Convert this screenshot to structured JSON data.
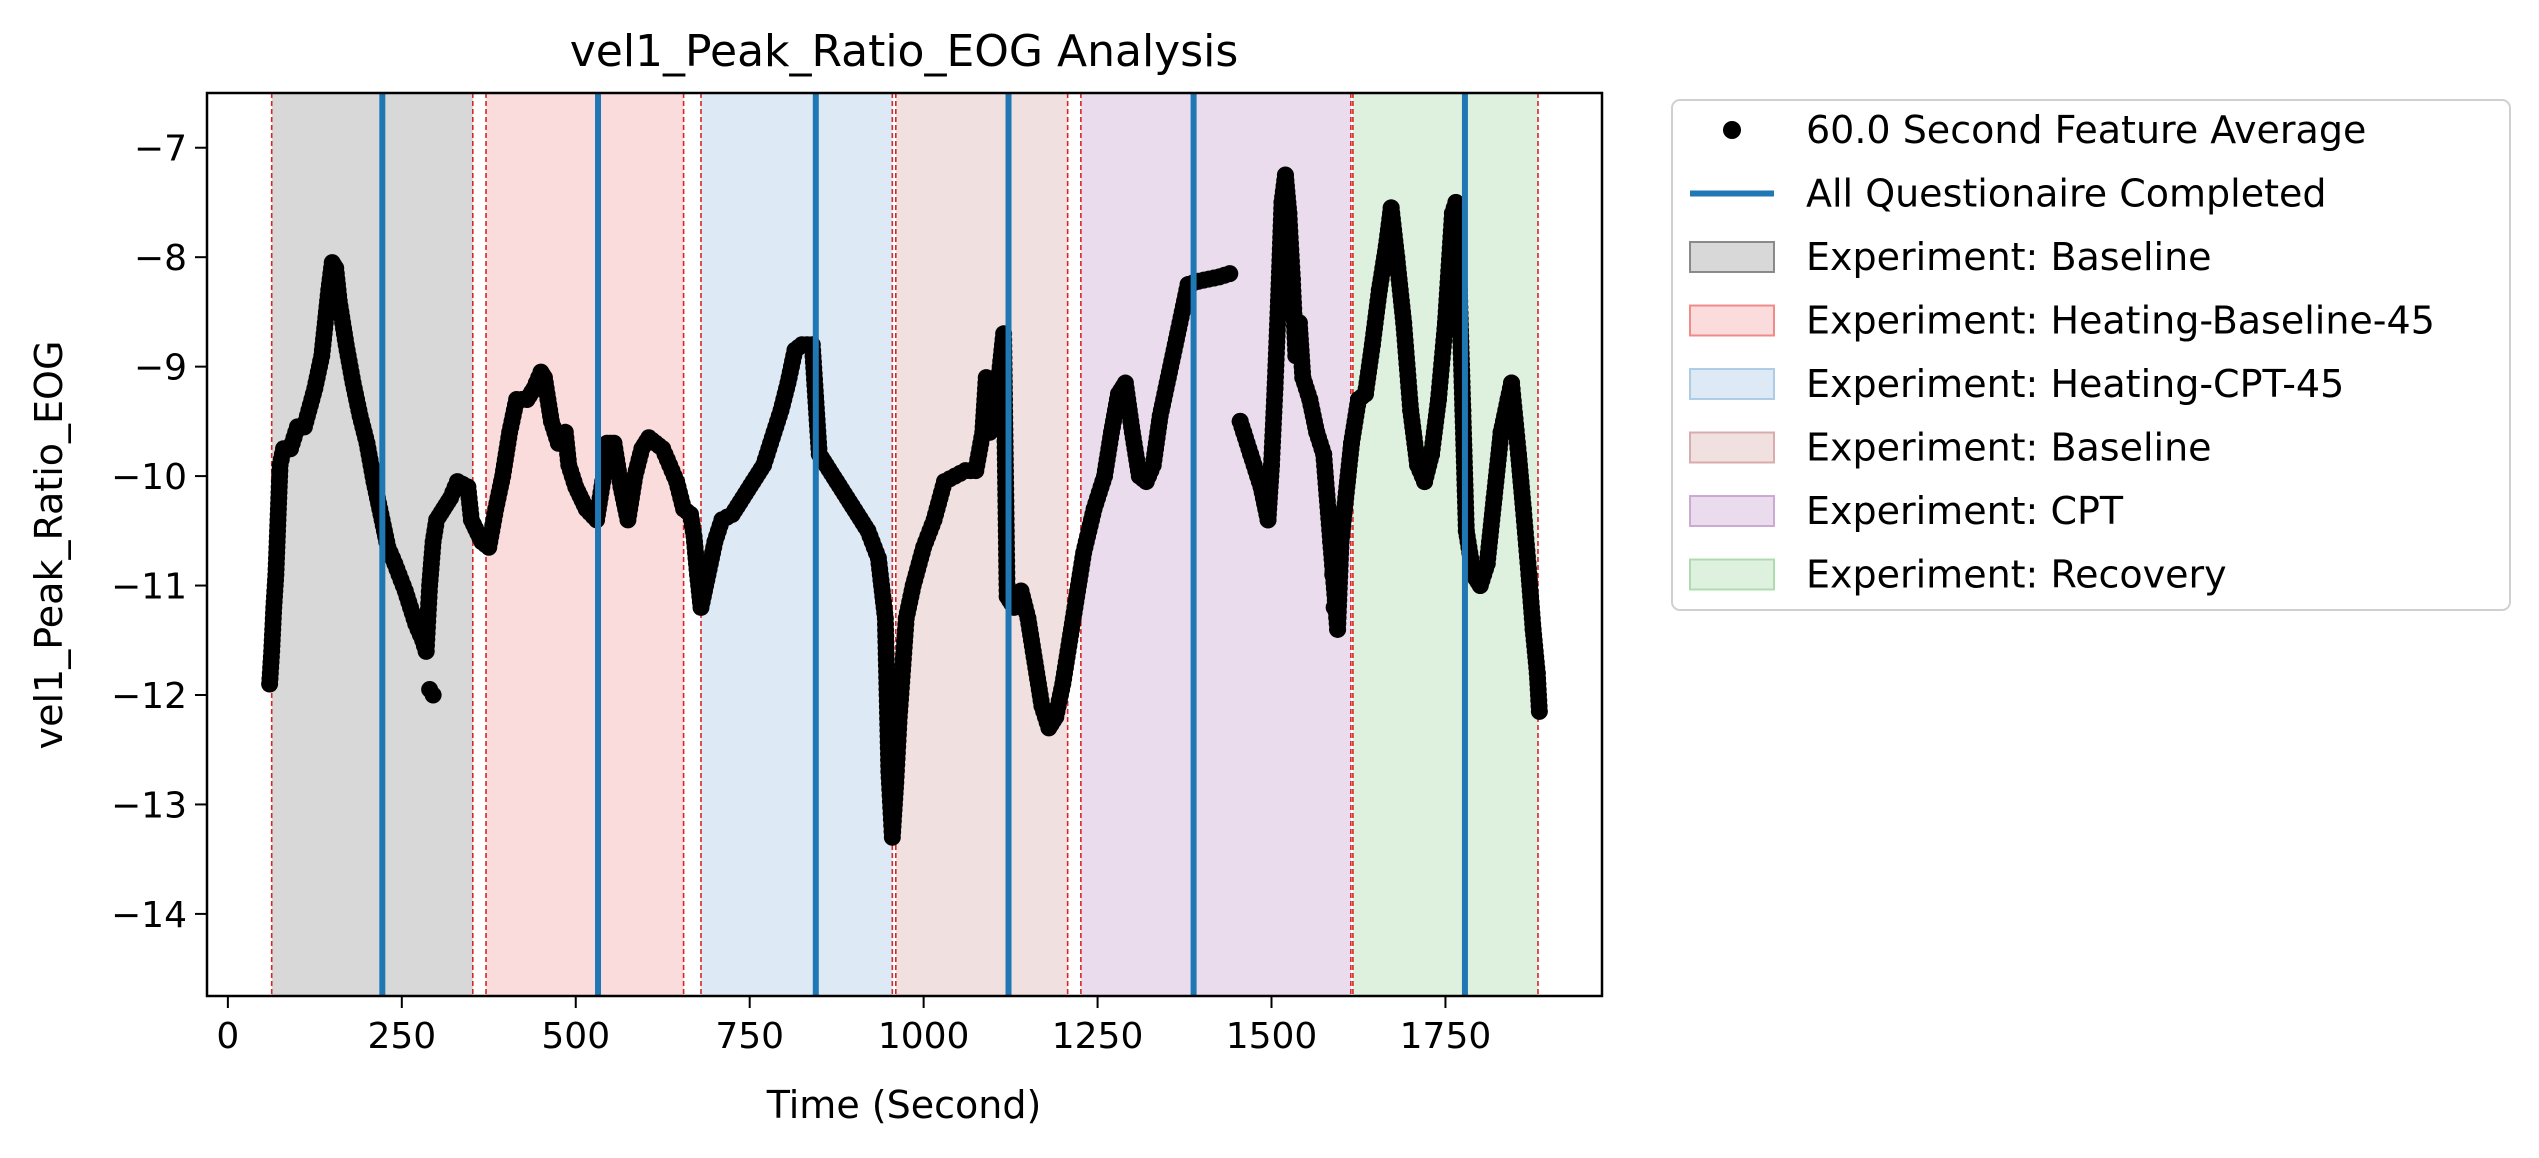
{
  "chart_data": {
    "type": "scatter",
    "title": "vel1_Peak_Ratio_EOG Analysis",
    "xlabel": "Time (Second)",
    "ylabel": "vel1_Peak_Ratio_EOG",
    "xlim": [
      -30,
      1975
    ],
    "ylim": [
      -14.75,
      -6.5
    ],
    "xticks": [
      0,
      250,
      500,
      750,
      1000,
      1250,
      1500,
      1750
    ],
    "xtick_labels": [
      "0",
      "250",
      "500",
      "750",
      "1000",
      "1250",
      "1500",
      "1750"
    ],
    "yticks": [
      -14,
      -13,
      -12,
      -11,
      -10,
      -9,
      -8,
      -7
    ],
    "ytick_labels": [
      "−14",
      "−13",
      "−12",
      "−11",
      "−10",
      "−9",
      "−8",
      "−7"
    ],
    "grid": false,
    "legend_position": "outside-right-top",
    "series": [
      {
        "name": "60.0 Second Feature Average",
        "color": "#000000",
        "marker": "circle",
        "path": [
          [
            60,
            -11.9
          ],
          [
            63,
            -11.6
          ],
          [
            66,
            -11.2
          ],
          [
            69,
            -10.9
          ],
          [
            72,
            -10.4
          ],
          [
            75,
            -9.9
          ],
          [
            80,
            -9.75
          ],
          [
            90,
            -9.75
          ],
          [
            100,
            -9.55
          ],
          [
            110,
            -9.55
          ],
          [
            125,
            -9.2
          ],
          [
            135,
            -8.9
          ],
          [
            145,
            -8.3
          ],
          [
            150,
            -8.05
          ],
          [
            155,
            -8.1
          ],
          [
            160,
            -8.4
          ],
          [
            170,
            -8.8
          ],
          [
            180,
            -9.15
          ],
          [
            190,
            -9.45
          ],
          [
            200,
            -9.7
          ],
          [
            210,
            -10.05
          ],
          [
            220,
            -10.35
          ],
          [
            230,
            -10.65
          ],
          [
            240,
            -10.8
          ],
          [
            255,
            -11.05
          ],
          [
            270,
            -11.35
          ],
          [
            280,
            -11.5
          ],
          [
            285,
            -11.6
          ],
          [
            290,
            -11.0
          ],
          [
            295,
            -10.6
          ],
          [
            300,
            -10.4
          ],
          [
            310,
            -10.3
          ],
          [
            320,
            -10.2
          ],
          [
            330,
            -10.05
          ],
          [
            345,
            -10.1
          ],
          [
            350,
            -10.4
          ],
          [
            365,
            -10.6
          ],
          [
            375,
            -10.65
          ],
          [
            385,
            -10.3
          ],
          [
            395,
            -10.0
          ],
          [
            405,
            -9.6
          ],
          [
            415,
            -9.3
          ],
          [
            430,
            -9.3
          ],
          [
            440,
            -9.2
          ],
          [
            450,
            -9.05
          ],
          [
            455,
            -9.1
          ],
          [
            465,
            -9.5
          ],
          [
            475,
            -9.7
          ],
          [
            485,
            -9.6
          ],
          [
            490,
            -9.9
          ],
          [
            500,
            -10.1
          ],
          [
            515,
            -10.3
          ],
          [
            530,
            -10.4
          ],
          [
            540,
            -10.0
          ],
          [
            545,
            -9.7
          ],
          [
            555,
            -9.7
          ],
          [
            565,
            -10.1
          ],
          [
            575,
            -10.4
          ],
          [
            585,
            -10.0
          ],
          [
            595,
            -9.75
          ],
          [
            605,
            -9.65
          ],
          [
            615,
            -9.7
          ],
          [
            625,
            -9.75
          ],
          [
            635,
            -9.9
          ],
          [
            645,
            -10.05
          ],
          [
            655,
            -10.3
          ],
          [
            665,
            -10.35
          ],
          [
            670,
            -10.55
          ],
          [
            675,
            -10.9
          ],
          [
            680,
            -11.2
          ],
          [
            690,
            -10.9
          ],
          [
            700,
            -10.6
          ],
          [
            710,
            -10.4
          ],
          [
            725,
            -10.35
          ],
          [
            740,
            -10.2
          ],
          [
            755,
            -10.05
          ],
          [
            770,
            -9.9
          ],
          [
            785,
            -9.6
          ],
          [
            795,
            -9.4
          ],
          [
            805,
            -9.15
          ],
          [
            815,
            -8.85
          ],
          [
            825,
            -8.8
          ],
          [
            840,
            -8.8
          ],
          [
            850,
            -9.8
          ],
          [
            860,
            -9.9
          ],
          [
            875,
            -10.05
          ],
          [
            890,
            -10.2
          ],
          [
            905,
            -10.35
          ],
          [
            920,
            -10.5
          ],
          [
            935,
            -10.75
          ],
          [
            945,
            -11.3
          ],
          [
            950,
            -12.7
          ],
          [
            955,
            -13.3
          ],
          [
            960,
            -12.8
          ],
          [
            965,
            -12.2
          ],
          [
            975,
            -11.3
          ],
          [
            985,
            -11.0
          ],
          [
            1000,
            -10.65
          ],
          [
            1015,
            -10.4
          ],
          [
            1030,
            -10.05
          ],
          [
            1045,
            -10.0
          ],
          [
            1060,
            -9.95
          ],
          [
            1075,
            -9.95
          ],
          [
            1085,
            -9.6
          ],
          [
            1090,
            -9.1
          ],
          [
            1095,
            -9.6
          ],
          [
            1100,
            -9.55
          ],
          [
            1110,
            -9.0
          ],
          [
            1115,
            -8.7
          ],
          [
            1120,
            -11.1
          ],
          [
            1130,
            -11.2
          ],
          [
            1140,
            -11.05
          ],
          [
            1150,
            -11.3
          ],
          [
            1160,
            -11.7
          ],
          [
            1170,
            -12.1
          ],
          [
            1180,
            -12.3
          ],
          [
            1190,
            -12.2
          ],
          [
            1200,
            -11.9
          ],
          [
            1215,
            -11.3
          ],
          [
            1230,
            -10.7
          ],
          [
            1245,
            -10.3
          ],
          [
            1260,
            -10.0
          ],
          [
            1270,
            -9.6
          ],
          [
            1280,
            -9.25
          ],
          [
            1290,
            -9.15
          ],
          [
            1300,
            -9.6
          ],
          [
            1310,
            -10.0
          ],
          [
            1320,
            -10.05
          ],
          [
            1330,
            -9.9
          ],
          [
            1340,
            -9.45
          ],
          [
            1355,
            -9.0
          ],
          [
            1365,
            -8.7
          ],
          [
            1380,
            -8.25
          ],
          [
            1395,
            -8.22
          ],
          [
            1410,
            -8.2
          ],
          [
            1425,
            -8.18
          ],
          [
            1440,
            -8.15
          ]
        ],
        "extra_points": [
          [
            1455,
            -9.5
          ],
          [
            1470,
            -9.8
          ],
          [
            1485,
            -10.1
          ],
          [
            1495,
            -10.4
          ],
          [
            1500,
            -9.9
          ],
          [
            1505,
            -9.2
          ],
          [
            1510,
            -8.4
          ],
          [
            1515,
            -7.5
          ],
          [
            1520,
            -7.25
          ],
          [
            1525,
            -7.6
          ],
          [
            1530,
            -8.2
          ],
          [
            1535,
            -8.9
          ],
          [
            1540,
            -8.6
          ],
          [
            1545,
            -9.1
          ],
          [
            1555,
            -9.3
          ],
          [
            1565,
            -9.6
          ],
          [
            1575,
            -9.8
          ],
          [
            1585,
            -10.6
          ],
          [
            1595,
            -11.4
          ],
          [
            1600,
            -10.6
          ],
          [
            1605,
            -10.3
          ],
          [
            1615,
            -9.7
          ],
          [
            1625,
            -9.3
          ],
          [
            1635,
            -9.25
          ],
          [
            1645,
            -8.8
          ],
          [
            1655,
            -8.3
          ],
          [
            1665,
            -7.9
          ],
          [
            1672,
            -7.55
          ],
          [
            1680,
            -8.0
          ],
          [
            1690,
            -8.6
          ],
          [
            1700,
            -9.4
          ],
          [
            1710,
            -9.9
          ],
          [
            1720,
            -10.05
          ],
          [
            1730,
            -9.8
          ],
          [
            1740,
            -9.3
          ],
          [
            1750,
            -8.6
          ],
          [
            1760,
            -7.6
          ],
          [
            1765,
            -7.5
          ],
          [
            1770,
            -8.3
          ],
          [
            1775,
            -9.4
          ],
          [
            1780,
            -10.5
          ],
          [
            1790,
            -10.9
          ],
          [
            1800,
            -11.0
          ],
          [
            1810,
            -10.8
          ],
          [
            1820,
            -10.2
          ],
          [
            1830,
            -9.6
          ],
          [
            1840,
            -9.3
          ],
          [
            1845,
            -9.15
          ],
          [
            1855,
            -9.8
          ],
          [
            1862,
            -10.3
          ],
          [
            1870,
            -10.9
          ],
          [
            1876,
            -11.4
          ],
          [
            1882,
            -11.8
          ],
          [
            1885,
            -12.15
          ],
          [
            290,
            -11.95
          ],
          [
            295,
            -12.0
          ],
          [
            285,
            -11.6
          ],
          [
            1590,
            -11.2
          ],
          [
            1588,
            -10.9
          ],
          [
            1460,
            -9.6
          ]
        ]
      }
    ],
    "vlines": {
      "name": "All Questionaire Completed",
      "color": "#1f77b4",
      "x": [
        222,
        532,
        845,
        1122,
        1388,
        1778
      ]
    },
    "phases": [
      {
        "label": "Experiment: Baseline",
        "color": "#7f7f7f",
        "opacity": 0.3,
        "start": 63,
        "end": 352
      },
      {
        "label": "Experiment: Heating-Baseline-45",
        "color": "#f08080",
        "opacity": 0.28,
        "start": 371,
        "end": 655
      },
      {
        "label": "Experiment: Heating-CPT-45",
        "color": "#a6c8e4",
        "opacity": 0.38,
        "start": 680,
        "end": 955
      },
      {
        "label": "Experiment: Baseline",
        "color": "#d4a5a5",
        "opacity": 0.35,
        "start": 960,
        "end": 1207
      },
      {
        "label": "Experiment: CPT",
        "color": "#c8a2d0",
        "opacity": 0.38,
        "start": 1226,
        "end": 1614
      },
      {
        "label": "Experiment: Recovery",
        "color": "#a8d8a8",
        "opacity": 0.38,
        "start": 1617,
        "end": 1883
      }
    ],
    "phase_boundaries": [
      63,
      352,
      371,
      655,
      680,
      955,
      960,
      1207,
      1226,
      1614,
      1617,
      1883
    ]
  }
}
